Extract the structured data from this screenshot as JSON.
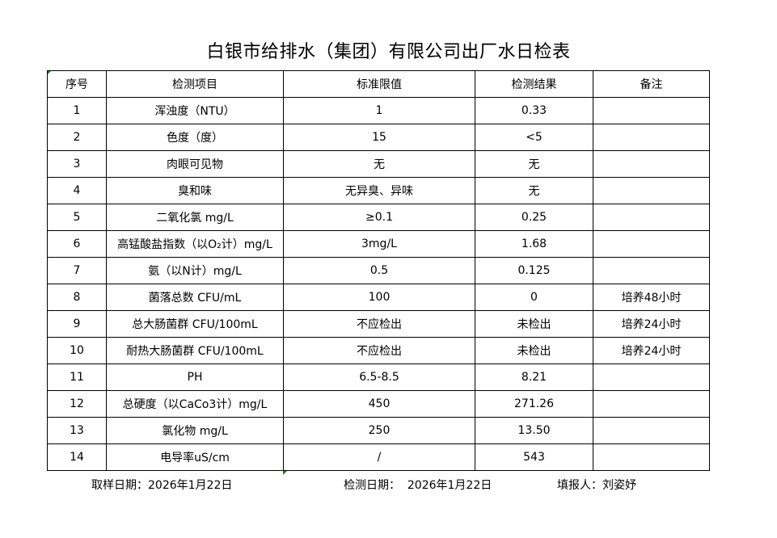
{
  "title": "白银市给排水（集团）有限公司出厂水日检表",
  "headers": [
    "序号",
    "检测项目",
    "标准限值",
    "检测结果",
    "备注"
  ],
  "rows": [
    [
      "1",
      "浑浊度（NTU）",
      "1",
      "0.33",
      ""
    ],
    [
      "2",
      "色度（度）",
      "15",
      "<5",
      ""
    ],
    [
      "3",
      "肉眼可见物",
      "无",
      "无",
      ""
    ],
    [
      "4",
      "臭和味",
      "无异臭、异味",
      "无",
      ""
    ],
    [
      "5",
      "二氧化氯 mg/L",
      "≥0.1",
      "0.25",
      ""
    ],
    [
      "6",
      "高锰酸盐指数（以O₂计）mg/L",
      "3mg/L",
      "1.68",
      ""
    ],
    [
      "7",
      "氨（以N计）mg/L",
      "0.5",
      "0.125",
      ""
    ],
    [
      "8",
      "菌落总数 CFU/mL",
      "100",
      "0",
      "培养48小时"
    ],
    [
      "9",
      "总大肠菌群 CFU/100mL",
      "不应检出",
      "未检出",
      "培养24小时"
    ],
    [
      "10",
      "耐热大肠菌群 CFU/100mL",
      "不应检出",
      "未检出",
      "培养24小时"
    ],
    [
      "11",
      "PH",
      "6.5-8.5",
      "8.21",
      ""
    ],
    [
      "12",
      "总硬度（以CaCo3计）mg/L",
      "450",
      "271.26",
      ""
    ],
    [
      "13",
      "氯化物 mg/L",
      "250",
      "13.50",
      ""
    ],
    [
      "14",
      "电导率uS/cm",
      "/",
      "543",
      ""
    ]
  ],
  "footer": {
    "sampling_date": "取样日期：2026年1月22日",
    "test_date": "检测日期：  2026年1月22日",
    "reporter": "填报人：刘姿妤"
  }
}
